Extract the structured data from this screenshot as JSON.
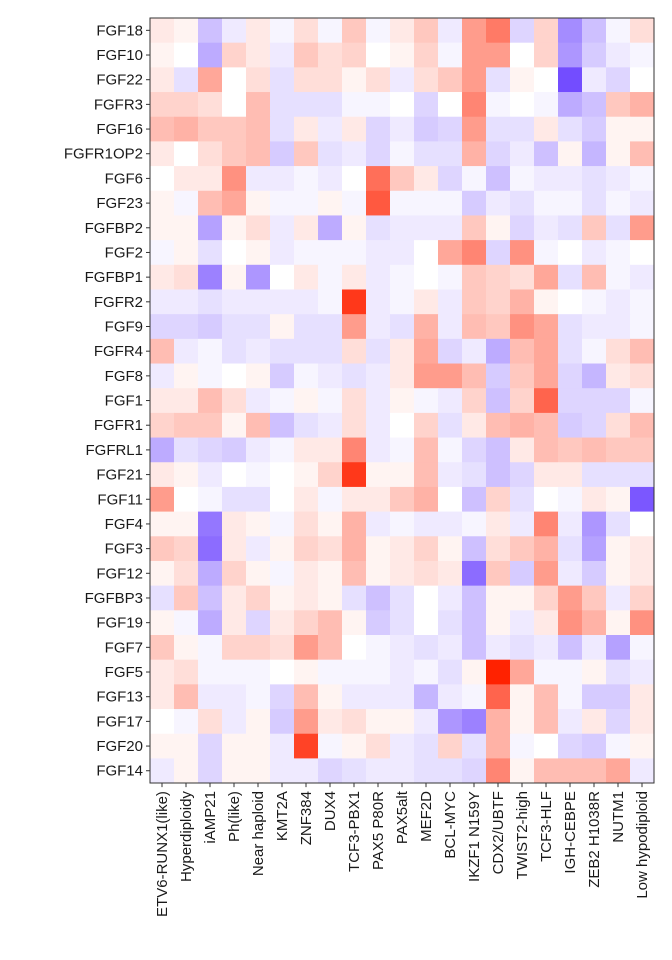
{
  "chart_data": {
    "type": "heatmap",
    "title": "",
    "xlabel": "",
    "ylabel": "",
    "colorscale": {
      "low": "#5a2dff",
      "mid": "#ffffff",
      "high": "#ff2200",
      "range": [
        -1,
        1
      ]
    },
    "legend": "none",
    "grid": false,
    "rows": [
      "FGF18",
      "FGF10",
      "FGF22",
      "FGFR3",
      "FGF16",
      "FGFR1OP2",
      "FGF6",
      "FGF23",
      "FGFBP2",
      "FGF2",
      "FGFBP1",
      "FGFR2",
      "FGF9",
      "FGFR4",
      "FGF8",
      "FGF1",
      "FGFR1",
      "FGFRL1",
      "FGF21",
      "FGF11",
      "FGF4",
      "FGF3",
      "FGF12",
      "FGFBP3",
      "FGF19",
      "FGF7",
      "FGF5",
      "FGF13",
      "FGF17",
      "FGF20",
      "FGF14"
    ],
    "columns": [
      "ETV6-RUNX1(like)",
      "Hyperdiploidy",
      "iAMP21",
      "Ph(like)",
      "Near haploid",
      "KMT2A",
      "ZNF384",
      "DUX4",
      "TCF3-PBX1",
      "PAX5 P80R",
      "PAX5alt",
      "MEF2D",
      "BCL-MYC",
      "IKZF1 N159Y",
      "CDX2/UBTF",
      "TWIST2-high",
      "TCF3-HLF",
      "IGH-CEBPE",
      "ZEB2 H1038R",
      "NUTM1",
      "Low hypodiploid"
    ],
    "values": [
      [
        0.1,
        0.05,
        -0.3,
        -0.1,
        0.1,
        -0.05,
        0.15,
        -0.05,
        0.25,
        -0.05,
        0.1,
        0.25,
        -0.1,
        0.45,
        0.6,
        -0.2,
        0.2,
        -0.55,
        -0.3,
        -0.05,
        0.15
      ],
      [
        0.05,
        0.0,
        -0.4,
        0.2,
        0.1,
        -0.1,
        0.25,
        0.15,
        0.2,
        0.0,
        0.05,
        0.2,
        -0.05,
        0.45,
        0.45,
        0.0,
        0.2,
        -0.5,
        -0.25,
        -0.1,
        -0.05
      ],
      [
        0.1,
        -0.15,
        0.4,
        0.0,
        0.15,
        -0.15,
        0.15,
        0.15,
        0.05,
        0.15,
        -0.1,
        0.15,
        0.25,
        0.45,
        -0.15,
        0.05,
        0.0,
        -0.85,
        -0.1,
        -0.2,
        0.0
      ],
      [
        0.2,
        0.2,
        0.15,
        0.0,
        0.3,
        -0.15,
        -0.15,
        -0.15,
        -0.05,
        -0.05,
        0.0,
        -0.2,
        0.0,
        0.55,
        -0.05,
        0.0,
        -0.05,
        -0.4,
        -0.3,
        0.25,
        0.35
      ],
      [
        0.3,
        0.35,
        0.25,
        0.25,
        0.3,
        -0.15,
        0.1,
        -0.1,
        0.1,
        -0.2,
        -0.1,
        -0.25,
        -0.2,
        0.45,
        -0.15,
        -0.15,
        0.1,
        -0.15,
        -0.25,
        0.05,
        0.05
      ],
      [
        0.1,
        0.0,
        0.15,
        0.25,
        0.3,
        -0.25,
        0.25,
        -0.15,
        -0.1,
        -0.2,
        -0.05,
        -0.15,
        -0.15,
        0.35,
        -0.2,
        -0.1,
        -0.3,
        0.05,
        -0.35,
        0.05,
        0.3
      ],
      [
        0.0,
        0.1,
        0.1,
        0.5,
        -0.1,
        -0.1,
        -0.05,
        -0.1,
        0.0,
        0.65,
        0.25,
        0.1,
        -0.2,
        -0.05,
        -0.3,
        -0.05,
        -0.1,
        -0.1,
        -0.15,
        -0.1,
        -0.05
      ],
      [
        0.05,
        -0.05,
        0.3,
        0.4,
        0.05,
        -0.05,
        -0.05,
        0.05,
        -0.05,
        0.75,
        -0.05,
        -0.05,
        -0.05,
        -0.25,
        -0.1,
        -0.15,
        -0.05,
        -0.05,
        -0.15,
        -0.05,
        -0.1
      ],
      [
        0.05,
        0.05,
        -0.45,
        0.05,
        0.15,
        -0.1,
        0.1,
        -0.4,
        0.05,
        -0.15,
        -0.1,
        -0.1,
        -0.1,
        0.25,
        0.05,
        -0.2,
        -0.1,
        -0.15,
        0.25,
        -0.15,
        0.45
      ],
      [
        -0.05,
        0.05,
        -0.15,
        0.0,
        0.05,
        -0.1,
        -0.05,
        -0.05,
        -0.05,
        -0.1,
        -0.1,
        0.0,
        0.4,
        0.55,
        -0.2,
        0.5,
        -0.05,
        0.0,
        -0.1,
        -0.05,
        0.0
      ],
      [
        0.1,
        0.15,
        -0.6,
        0.05,
        -0.5,
        0.0,
        0.1,
        -0.05,
        0.1,
        -0.1,
        -0.05,
        0.0,
        -0.05,
        0.25,
        0.2,
        0.15,
        0.4,
        -0.15,
        0.3,
        -0.05,
        -0.1
      ],
      [
        -0.1,
        -0.1,
        -0.15,
        -0.1,
        -0.1,
        -0.1,
        -0.1,
        -0.05,
        0.9,
        -0.1,
        -0.05,
        0.1,
        -0.1,
        0.25,
        0.2,
        0.35,
        0.05,
        0.0,
        -0.05,
        -0.1,
        -0.05
      ],
      [
        -0.2,
        -0.2,
        -0.25,
        -0.15,
        -0.15,
        0.05,
        -0.15,
        -0.15,
        0.45,
        -0.1,
        -0.15,
        0.35,
        -0.1,
        0.3,
        0.25,
        0.5,
        0.4,
        -0.15,
        -0.1,
        -0.1,
        -0.05
      ],
      [
        0.3,
        -0.1,
        -0.05,
        -0.15,
        -0.1,
        -0.15,
        -0.15,
        -0.15,
        0.15,
        -0.15,
        0.1,
        0.4,
        -0.2,
        -0.1,
        -0.4,
        0.3,
        0.4,
        -0.15,
        -0.05,
        0.15,
        0.3
      ],
      [
        -0.1,
        0.05,
        -0.05,
        0.0,
        0.05,
        -0.25,
        -0.05,
        -0.1,
        -0.15,
        -0.1,
        0.1,
        0.45,
        0.45,
        0.3,
        -0.25,
        0.25,
        0.4,
        -0.2,
        -0.35,
        0.1,
        0.15
      ],
      [
        0.1,
        0.1,
        0.3,
        0.15,
        -0.1,
        -0.05,
        0.05,
        -0.05,
        0.15,
        -0.1,
        0.05,
        -0.05,
        -0.1,
        0.2,
        -0.3,
        0.2,
        0.7,
        -0.2,
        -0.2,
        -0.2,
        -0.05
      ],
      [
        0.2,
        0.25,
        0.25,
        0.05,
        0.3,
        -0.3,
        -0.15,
        -0.1,
        0.15,
        -0.1,
        0.0,
        0.2,
        -0.15,
        0.1,
        0.3,
        0.35,
        0.3,
        -0.25,
        -0.2,
        0.15,
        0.3
      ],
      [
        -0.4,
        -0.15,
        -0.2,
        -0.25,
        -0.1,
        -0.05,
        0.1,
        0.1,
        0.55,
        -0.1,
        -0.05,
        0.3,
        -0.05,
        -0.2,
        -0.3,
        0.1,
        0.3,
        0.25,
        0.3,
        0.25,
        0.25
      ],
      [
        0.1,
        0.05,
        -0.1,
        0.0,
        -0.05,
        0.0,
        0.05,
        0.2,
        0.9,
        0.05,
        0.05,
        0.3,
        -0.1,
        -0.15,
        -0.3,
        -0.2,
        0.1,
        0.1,
        -0.15,
        -0.15,
        -0.15
      ],
      [
        0.45,
        0.0,
        -0.05,
        -0.15,
        -0.15,
        0.0,
        0.1,
        -0.05,
        0.1,
        0.1,
        0.25,
        0.35,
        0.0,
        -0.3,
        0.2,
        -0.15,
        0.0,
        -0.05,
        0.1,
        0.05,
        -0.8
      ],
      [
        0.05,
        0.05,
        -0.65,
        0.1,
        0.05,
        -0.05,
        0.15,
        0.05,
        0.35,
        -0.1,
        -0.05,
        -0.1,
        -0.1,
        -0.05,
        0.1,
        -0.1,
        0.55,
        -0.1,
        -0.5,
        -0.15,
        0.0
      ],
      [
        0.25,
        0.2,
        -0.7,
        0.1,
        -0.1,
        0.05,
        0.2,
        0.15,
        0.35,
        0.05,
        0.1,
        0.2,
        0.05,
        -0.3,
        0.15,
        0.25,
        0.35,
        -0.15,
        -0.45,
        0.05,
        0.1
      ],
      [
        0.05,
        0.15,
        -0.4,
        0.2,
        0.05,
        -0.05,
        0.1,
        0.05,
        0.3,
        0.05,
        0.1,
        0.15,
        0.1,
        -0.7,
        0.25,
        -0.25,
        0.45,
        -0.1,
        -0.25,
        0.05,
        0.1
      ],
      [
        -0.15,
        0.25,
        -0.3,
        0.1,
        0.2,
        0.05,
        0.1,
        0.05,
        -0.15,
        -0.3,
        -0.15,
        0.0,
        -0.1,
        -0.3,
        0.05,
        0.05,
        0.2,
        0.45,
        0.25,
        -0.1,
        0.2
      ],
      [
        0.05,
        -0.05,
        -0.4,
        0.1,
        -0.2,
        0.1,
        0.2,
        0.3,
        0.05,
        -0.25,
        -0.15,
        0.0,
        -0.15,
        -0.3,
        0.05,
        -0.1,
        0.1,
        0.5,
        0.35,
        0.05,
        0.5
      ],
      [
        0.25,
        0.05,
        -0.05,
        0.2,
        0.2,
        0.15,
        0.45,
        0.3,
        0.0,
        -0.05,
        -0.1,
        -0.15,
        -0.1,
        -0.3,
        -0.1,
        -0.15,
        -0.1,
        -0.3,
        -0.1,
        -0.45,
        -0.05
      ],
      [
        0.1,
        0.15,
        -0.05,
        -0.05,
        -0.05,
        0.0,
        0.05,
        -0.05,
        -0.05,
        -0.05,
        -0.1,
        -0.05,
        -0.15,
        0.05,
        1.0,
        0.4,
        -0.05,
        -0.05,
        0.05,
        -0.15,
        -0.1
      ],
      [
        0.1,
        0.3,
        -0.1,
        -0.1,
        -0.05,
        -0.2,
        0.3,
        0.05,
        -0.1,
        -0.1,
        -0.1,
        -0.35,
        -0.1,
        -0.05,
        0.7,
        0.05,
        0.3,
        -0.05,
        -0.25,
        -0.25,
        0.1
      ],
      [
        0.0,
        -0.05,
        0.15,
        -0.1,
        0.05,
        -0.25,
        0.45,
        0.1,
        0.15,
        0.05,
        0.05,
        -0.1,
        -0.5,
        -0.6,
        0.35,
        0.05,
        0.3,
        -0.1,
        0.1,
        -0.2,
        0.1
      ],
      [
        0.05,
        0.05,
        -0.2,
        0.05,
        0.05,
        -0.1,
        0.85,
        -0.05,
        0.05,
        0.15,
        -0.1,
        -0.15,
        0.2,
        -0.15,
        0.35,
        -0.05,
        0.0,
        -0.2,
        -0.25,
        -0.05,
        0.05
      ],
      [
        -0.1,
        0.05,
        -0.2,
        0.05,
        0.05,
        -0.1,
        -0.1,
        -0.2,
        -0.15,
        -0.1,
        -0.1,
        -0.15,
        -0.15,
        -0.2,
        0.55,
        0.05,
        0.3,
        0.3,
        0.3,
        0.4,
        -0.1
      ]
    ]
  }
}
